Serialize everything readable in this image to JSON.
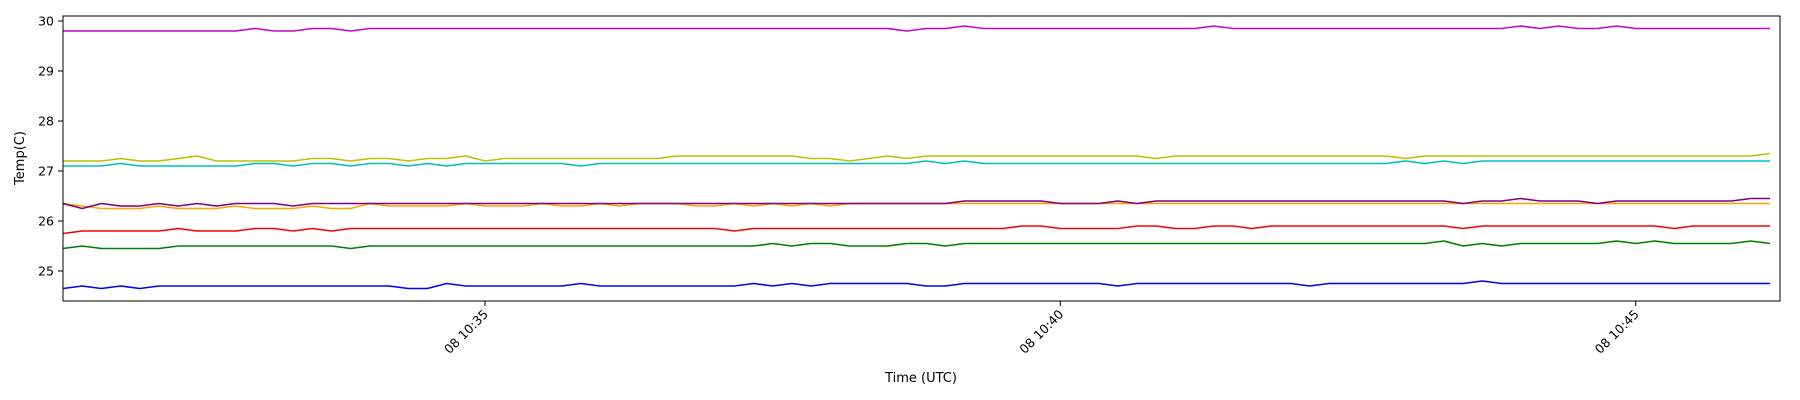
{
  "chart_data": {
    "type": "line",
    "xlabel": "Time (UTC)",
    "ylabel": "Temp(C)",
    "x_axis": {
      "kind": "time",
      "start": "08 10:31:20",
      "end": "08 10:46:10",
      "step_seconds": 10
    },
    "xticks": [
      {
        "time": "08 10:35:00",
        "label": "08 10:35"
      },
      {
        "time": "08 10:40:00",
        "label": "08 10:40"
      },
      {
        "time": "08 10:45:00",
        "label": "08 10:45"
      }
    ],
    "ylim": [
      24.4,
      30.1
    ],
    "yticks": [
      25,
      26,
      27,
      28,
      29,
      30
    ],
    "grid": false,
    "legend": "none",
    "series": [
      {
        "color": "#cc00cc",
        "values": [
          29.8,
          29.8,
          29.8,
          29.8,
          29.8,
          29.8,
          29.8,
          29.8,
          29.8,
          29.8,
          29.85,
          29.8,
          29.8,
          29.85,
          29.85,
          29.8,
          29.85,
          29.85,
          29.85,
          29.85,
          29.85,
          29.85,
          29.85,
          29.85,
          29.85,
          29.85,
          29.85,
          29.85,
          29.85,
          29.85,
          29.85,
          29.85,
          29.85,
          29.85,
          29.85,
          29.85,
          29.85,
          29.85,
          29.85,
          29.85,
          29.85,
          29.85,
          29.85,
          29.85,
          29.8,
          29.85,
          29.85,
          29.9,
          29.85,
          29.85,
          29.85,
          29.85,
          29.85,
          29.85,
          29.85,
          29.85,
          29.85,
          29.85,
          29.85,
          29.85,
          29.9,
          29.85,
          29.85,
          29.85,
          29.85,
          29.85,
          29.85,
          29.85,
          29.85,
          29.85,
          29.85,
          29.85,
          29.85,
          29.85,
          29.85,
          29.85,
          29.9,
          29.85,
          29.9,
          29.85,
          29.85,
          29.9,
          29.85,
          29.85,
          29.85,
          29.85,
          29.85,
          29.85,
          29.85,
          29.85
        ]
      },
      {
        "color": "#bfbf00",
        "values": [
          27.2,
          27.2,
          27.2,
          27.25,
          27.2,
          27.2,
          27.25,
          27.3,
          27.2,
          27.2,
          27.2,
          27.2,
          27.2,
          27.25,
          27.25,
          27.2,
          27.25,
          27.25,
          27.2,
          27.25,
          27.25,
          27.3,
          27.2,
          27.25,
          27.25,
          27.25,
          27.25,
          27.25,
          27.25,
          27.25,
          27.25,
          27.25,
          27.3,
          27.3,
          27.3,
          27.3,
          27.3,
          27.3,
          27.3,
          27.25,
          27.25,
          27.2,
          27.25,
          27.3,
          27.25,
          27.3,
          27.3,
          27.3,
          27.3,
          27.3,
          27.3,
          27.3,
          27.3,
          27.3,
          27.3,
          27.3,
          27.3,
          27.25,
          27.3,
          27.3,
          27.3,
          27.3,
          27.3,
          27.3,
          27.3,
          27.3,
          27.3,
          27.3,
          27.3,
          27.3,
          27.25,
          27.3,
          27.3,
          27.3,
          27.3,
          27.3,
          27.3,
          27.3,
          27.3,
          27.3,
          27.3,
          27.3,
          27.3,
          27.3,
          27.3,
          27.3,
          27.3,
          27.3,
          27.3,
          27.35
        ]
      },
      {
        "color": "#00bfbf",
        "values": [
          27.1,
          27.1,
          27.1,
          27.15,
          27.1,
          27.1,
          27.1,
          27.1,
          27.1,
          27.1,
          27.15,
          27.15,
          27.1,
          27.15,
          27.15,
          27.1,
          27.15,
          27.15,
          27.1,
          27.15,
          27.1,
          27.15,
          27.15,
          27.15,
          27.15,
          27.15,
          27.15,
          27.1,
          27.15,
          27.15,
          27.15,
          27.15,
          27.15,
          27.15,
          27.15,
          27.15,
          27.15,
          27.15,
          27.15,
          27.15,
          27.15,
          27.15,
          27.15,
          27.15,
          27.15,
          27.2,
          27.15,
          27.2,
          27.15,
          27.15,
          27.15,
          27.15,
          27.15,
          27.15,
          27.15,
          27.15,
          27.15,
          27.15,
          27.15,
          27.15,
          27.15,
          27.15,
          27.15,
          27.15,
          27.15,
          27.15,
          27.15,
          27.15,
          27.15,
          27.15,
          27.2,
          27.15,
          27.2,
          27.15,
          27.2,
          27.2,
          27.2,
          27.2,
          27.2,
          27.2,
          27.2,
          27.2,
          27.2,
          27.2,
          27.2,
          27.2,
          27.2,
          27.2,
          27.2,
          27.2
        ]
      },
      {
        "color": "#ffa500",
        "values": [
          26.35,
          26.3,
          26.25,
          26.25,
          26.25,
          26.3,
          26.25,
          26.25,
          26.25,
          26.3,
          26.25,
          26.25,
          26.25,
          26.3,
          26.25,
          26.25,
          26.35,
          26.3,
          26.3,
          26.3,
          26.3,
          26.35,
          26.3,
          26.3,
          26.3,
          26.35,
          26.3,
          26.3,
          26.35,
          26.3,
          26.35,
          26.35,
          26.35,
          26.3,
          26.3,
          26.35,
          26.3,
          26.35,
          26.3,
          26.35,
          26.3,
          26.35,
          26.35,
          26.35,
          26.35,
          26.35,
          26.35,
          26.35,
          26.35,
          26.35,
          26.35,
          26.35,
          26.35,
          26.35,
          26.35,
          26.35,
          26.35,
          26.35,
          26.35,
          26.35,
          26.35,
          26.35,
          26.35,
          26.35,
          26.35,
          26.35,
          26.35,
          26.35,
          26.35,
          26.35,
          26.35,
          26.35,
          26.35,
          26.35,
          26.35,
          26.35,
          26.35,
          26.35,
          26.35,
          26.35,
          26.35,
          26.35,
          26.35,
          26.35,
          26.35,
          26.35,
          26.35,
          26.35,
          26.35,
          26.35
        ]
      },
      {
        "color": "#800080",
        "values": [
          26.35,
          26.25,
          26.35,
          26.3,
          26.3,
          26.35,
          26.3,
          26.35,
          26.3,
          26.35,
          26.35,
          26.35,
          26.3,
          26.35,
          26.35,
          26.35,
          26.35,
          26.35,
          26.35,
          26.35,
          26.35,
          26.35,
          26.35,
          26.35,
          26.35,
          26.35,
          26.35,
          26.35,
          26.35,
          26.35,
          26.35,
          26.35,
          26.35,
          26.35,
          26.35,
          26.35,
          26.35,
          26.35,
          26.35,
          26.35,
          26.35,
          26.35,
          26.35,
          26.35,
          26.35,
          26.35,
          26.35,
          26.4,
          26.4,
          26.4,
          26.4,
          26.4,
          26.35,
          26.35,
          26.35,
          26.4,
          26.35,
          26.4,
          26.4,
          26.4,
          26.4,
          26.4,
          26.4,
          26.4,
          26.4,
          26.4,
          26.4,
          26.4,
          26.4,
          26.4,
          26.4,
          26.4,
          26.4,
          26.35,
          26.4,
          26.4,
          26.45,
          26.4,
          26.4,
          26.4,
          26.35,
          26.4,
          26.4,
          26.4,
          26.4,
          26.4,
          26.4,
          26.4,
          26.45,
          26.45
        ]
      },
      {
        "color": "#ff0000",
        "values": [
          25.75,
          25.8,
          25.8,
          25.8,
          25.8,
          25.8,
          25.85,
          25.8,
          25.8,
          25.8,
          25.85,
          25.85,
          25.8,
          25.85,
          25.8,
          25.85,
          25.85,
          25.85,
          25.85,
          25.85,
          25.85,
          25.85,
          25.85,
          25.85,
          25.85,
          25.85,
          25.85,
          25.85,
          25.85,
          25.85,
          25.85,
          25.85,
          25.85,
          25.85,
          25.85,
          25.8,
          25.85,
          25.85,
          25.85,
          25.85,
          25.85,
          25.85,
          25.85,
          25.85,
          25.85,
          25.85,
          25.85,
          25.85,
          25.85,
          25.85,
          25.9,
          25.9,
          25.85,
          25.85,
          25.85,
          25.85,
          25.9,
          25.9,
          25.85,
          25.85,
          25.9,
          25.9,
          25.85,
          25.9,
          25.9,
          25.9,
          25.9,
          25.9,
          25.9,
          25.9,
          25.9,
          25.9,
          25.9,
          25.85,
          25.9,
          25.9,
          25.9,
          25.9,
          25.9,
          25.9,
          25.9,
          25.9,
          25.9,
          25.9,
          25.85,
          25.9,
          25.9,
          25.9,
          25.9,
          25.9
        ]
      },
      {
        "color": "#008000",
        "values": [
          25.45,
          25.5,
          25.45,
          25.45,
          25.45,
          25.45,
          25.5,
          25.5,
          25.5,
          25.5,
          25.5,
          25.5,
          25.5,
          25.5,
          25.5,
          25.45,
          25.5,
          25.5,
          25.5,
          25.5,
          25.5,
          25.5,
          25.5,
          25.5,
          25.5,
          25.5,
          25.5,
          25.5,
          25.5,
          25.5,
          25.5,
          25.5,
          25.5,
          25.5,
          25.5,
          25.5,
          25.5,
          25.55,
          25.5,
          25.55,
          25.55,
          25.5,
          25.5,
          25.5,
          25.55,
          25.55,
          25.5,
          25.55,
          25.55,
          25.55,
          25.55,
          25.55,
          25.55,
          25.55,
          25.55,
          25.55,
          25.55,
          25.55,
          25.55,
          25.55,
          25.55,
          25.55,
          25.55,
          25.55,
          25.55,
          25.55,
          25.55,
          25.55,
          25.55,
          25.55,
          25.55,
          25.55,
          25.6,
          25.5,
          25.55,
          25.5,
          25.55,
          25.55,
          25.55,
          25.55,
          25.55,
          25.6,
          25.55,
          25.6,
          25.55,
          25.55,
          25.55,
          25.55,
          25.6,
          25.55
        ]
      },
      {
        "color": "#0000ff",
        "values": [
          24.65,
          24.7,
          24.65,
          24.7,
          24.65,
          24.7,
          24.7,
          24.7,
          24.7,
          24.7,
          24.7,
          24.7,
          24.7,
          24.7,
          24.7,
          24.7,
          24.7,
          24.7,
          24.65,
          24.65,
          24.75,
          24.7,
          24.7,
          24.7,
          24.7,
          24.7,
          24.7,
          24.75,
          24.7,
          24.7,
          24.7,
          24.7,
          24.7,
          24.7,
          24.7,
          24.7,
          24.75,
          24.7,
          24.75,
          24.7,
          24.75,
          24.75,
          24.75,
          24.75,
          24.75,
          24.7,
          24.7,
          24.75,
          24.75,
          24.75,
          24.75,
          24.75,
          24.75,
          24.75,
          24.75,
          24.7,
          24.75,
          24.75,
          24.75,
          24.75,
          24.75,
          24.75,
          24.75,
          24.75,
          24.75,
          24.7,
          24.75,
          24.75,
          24.75,
          24.75,
          24.75,
          24.75,
          24.75,
          24.75,
          24.8,
          24.75,
          24.75,
          24.75,
          24.75,
          24.75,
          24.75,
          24.75,
          24.75,
          24.75,
          24.75,
          24.75,
          24.75,
          24.75,
          24.75,
          24.75
        ]
      }
    ]
  }
}
